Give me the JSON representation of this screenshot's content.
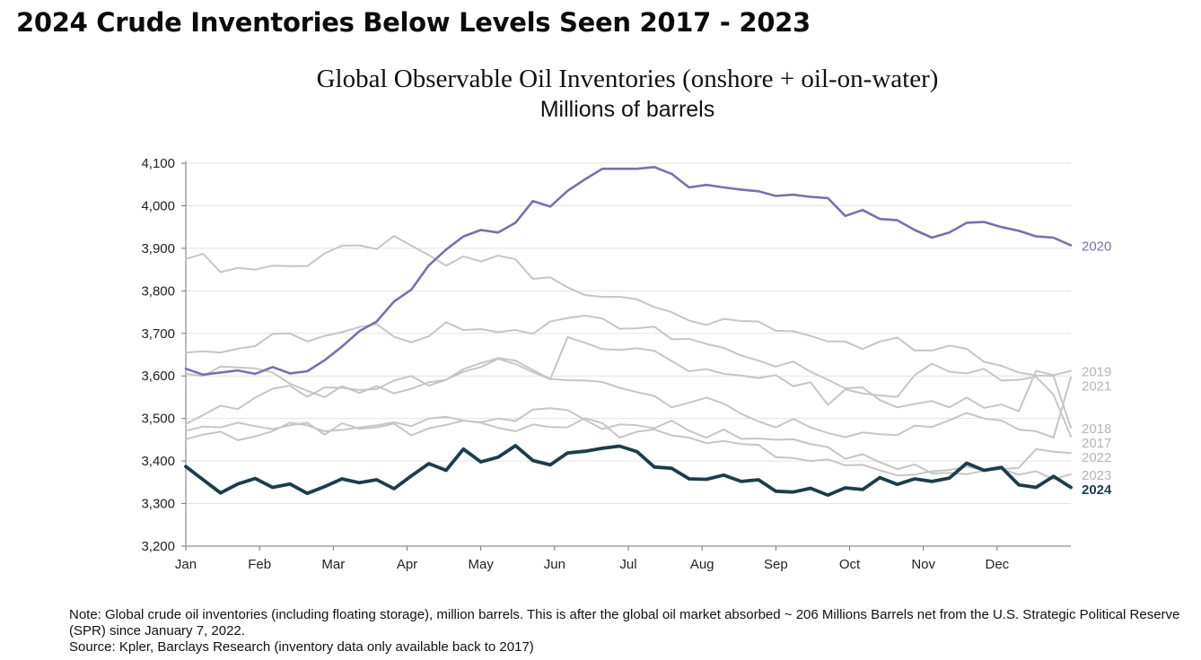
{
  "headline": "2024 Crude Inventories Below Levels Seen 2017 - 2023",
  "notes": {
    "note": "Note: Global crude oil inventories (including floating storage), million barrels. This is after the global oil market absorbed ~ 206 Millions Barrels net from the U.S. Strategic Political Reserve (SPR) since January 7, 2022.",
    "source": "Source: Kpler, Barclays Research (inventory data only available back to 2017)"
  },
  "colors": {
    "highlight_2020": "#7b6fae",
    "highlight_2024": "#1c3d4a",
    "other_years": "#c6c6c6",
    "label_other": "#b5b5b5",
    "gridline": "#e3e3e3",
    "axis": "#777777"
  },
  "chart_data": {
    "type": "line",
    "title": "Global Observable Oil Inventories (onshore + oil-on-water)",
    "subtitle": "Millions of barrels",
    "xlabel": "",
    "ylabel": "",
    "x_tick_labels": [
      "Jan",
      "Feb",
      "Mar",
      "Apr",
      "May",
      "Jun",
      "Jul",
      "Aug",
      "Sep",
      "Oct",
      "Nov",
      "Dec"
    ],
    "y_tick_labels": [
      "3,200",
      "3,300",
      "3,400",
      "3,500",
      "3,600",
      "3,700",
      "3,800",
      "3,900",
      "4,000",
      "4,100"
    ],
    "ylim": [
      3200,
      4100
    ],
    "x_unit": "week of year",
    "xlim": [
      1,
      52
    ],
    "grid": "horizontal",
    "legend": "end-of-line labels",
    "series": [
      {
        "name": "2020",
        "style": "highlight-2020",
        "values": [
          3617,
          3603,
          3608,
          3613,
          3605,
          3621,
          3606,
          3611,
          3637,
          3669,
          3705,
          3728,
          3775,
          3803,
          3860,
          3897,
          3928,
          3943,
          3937,
          3960,
          4011,
          3998,
          4035,
          4062,
          4087,
          4087,
          4087,
          4091,
          4075,
          4043,
          4049,
          4043,
          4038,
          4034,
          4023,
          4026,
          4021,
          4018,
          3976,
          3990,
          3969,
          3966,
          3943,
          3925,
          3937,
          3960,
          3962,
          3950,
          3941,
          3928,
          3925,
          3907
        ]
      },
      {
        "name": "2019",
        "style": "other",
        "values": [
          3655,
          3658,
          3655,
          3664,
          3670,
          3699,
          3700,
          3681,
          3694,
          3703,
          3715,
          3722,
          3692,
          3679,
          3693,
          3726,
          3708,
          3710,
          3703,
          3708,
          3699,
          3728,
          3736,
          3742,
          3735,
          3711,
          3712,
          3716,
          3686,
          3687,
          3675,
          3666,
          3648,
          3636,
          3622,
          3634,
          3610,
          3591,
          3571,
          3573,
          3543,
          3526,
          3534,
          3541,
          3526,
          3549,
          3525,
          3533,
          3517,
          3612,
          3602,
          3612
        ]
      },
      {
        "name": "2021",
        "style": "other",
        "values": [
          3605,
          3600,
          3622,
          3620,
          3618,
          3608,
          3582,
          3565,
          3550,
          3576,
          3560,
          3576,
          3559,
          3570,
          3585,
          3591,
          3616,
          3630,
          3642,
          3636,
          3614,
          3593,
          3590,
          3589,
          3586,
          3572,
          3562,
          3553,
          3526,
          3537,
          3549,
          3535,
          3511,
          3493,
          3479,
          3499,
          3479,
          3466,
          3456,
          3467,
          3463,
          3461,
          3483,
          3480,
          3496,
          3513,
          3500,
          3495,
          3474,
          3470,
          3455,
          3597
        ]
      },
      {
        "name": "2018",
        "style": "other",
        "values": [
          3875,
          3887,
          3844,
          3854,
          3850,
          3859,
          3858,
          3858,
          3888,
          3906,
          3907,
          3898,
          3929,
          3906,
          3884,
          3859,
          3881,
          3869,
          3883,
          3874,
          3828,
          3832,
          3808,
          3790,
          3786,
          3786,
          3780,
          3762,
          3750,
          3730,
          3720,
          3734,
          3729,
          3728,
          3706,
          3705,
          3694,
          3681,
          3681,
          3663,
          3681,
          3690,
          3660,
          3660,
          3671,
          3664,
          3633,
          3624,
          3608,
          3601,
          3600,
          3478
        ]
      },
      {
        "name": "2017",
        "style": "other",
        "values": [
          3487,
          3508,
          3530,
          3522,
          3549,
          3570,
          3577,
          3551,
          3573,
          3572,
          3567,
          3569,
          3589,
          3600,
          3577,
          3591,
          3610,
          3621,
          3640,
          3628,
          3609,
          3592,
          3691,
          3678,
          3663,
          3661,
          3665,
          3659,
          3635,
          3611,
          3616,
          3605,
          3601,
          3595,
          3602,
          3576,
          3585,
          3532,
          3568,
          3559,
          3554,
          3551,
          3602,
          3629,
          3610,
          3606,
          3617,
          3589,
          3591,
          3598,
          3556,
          3458
        ]
      },
      {
        "name": "2022",
        "style": "other",
        "values": [
          3471,
          3481,
          3479,
          3490,
          3482,
          3475,
          3484,
          3490,
          3462,
          3489,
          3476,
          3479,
          3488,
          3460,
          3477,
          3485,
          3495,
          3490,
          3478,
          3470,
          3486,
          3480,
          3479,
          3501,
          3489,
          3455,
          3469,
          3474,
          3460,
          3455,
          3442,
          3447,
          3440,
          3438,
          3409,
          3407,
          3400,
          3404,
          3390,
          3391,
          3378,
          3366,
          3368,
          3376,
          3379,
          3387,
          3378,
          3381,
          3384,
          3428,
          3422,
          3419
        ]
      },
      {
        "name": "2023",
        "style": "other",
        "values": [
          3451,
          3462,
          3469,
          3449,
          3458,
          3470,
          3490,
          3484,
          3470,
          3473,
          3479,
          3484,
          3491,
          3482,
          3500,
          3504,
          3495,
          3491,
          3500,
          3494,
          3521,
          3524,
          3520,
          3497,
          3475,
          3486,
          3484,
          3477,
          3495,
          3471,
          3455,
          3474,
          3452,
          3453,
          3450,
          3451,
          3440,
          3433,
          3405,
          3416,
          3397,
          3381,
          3392,
          3371,
          3372,
          3369,
          3377,
          3381,
          3368,
          3376,
          3357,
          3369
        ]
      },
      {
        "name": "2024",
        "style": "highlight-2024",
        "values": [
          3387,
          3356,
          3325,
          3346,
          3359,
          3338,
          3346,
          3324,
          3340,
          3358,
          3349,
          3356,
          3335,
          3365,
          3394,
          3378,
          3428,
          3398,
          3409,
          3436,
          3401,
          3391,
          3419,
          3423,
          3430,
          3435,
          3422,
          3386,
          3383,
          3358,
          3357,
          3367,
          3352,
          3356,
          3329,
          3327,
          3336,
          3320,
          3337,
          3333,
          3361,
          3345,
          3358,
          3352,
          3360,
          3395,
          3378,
          3385,
          3344,
          3338,
          3364,
          3338
        ]
      }
    ]
  }
}
